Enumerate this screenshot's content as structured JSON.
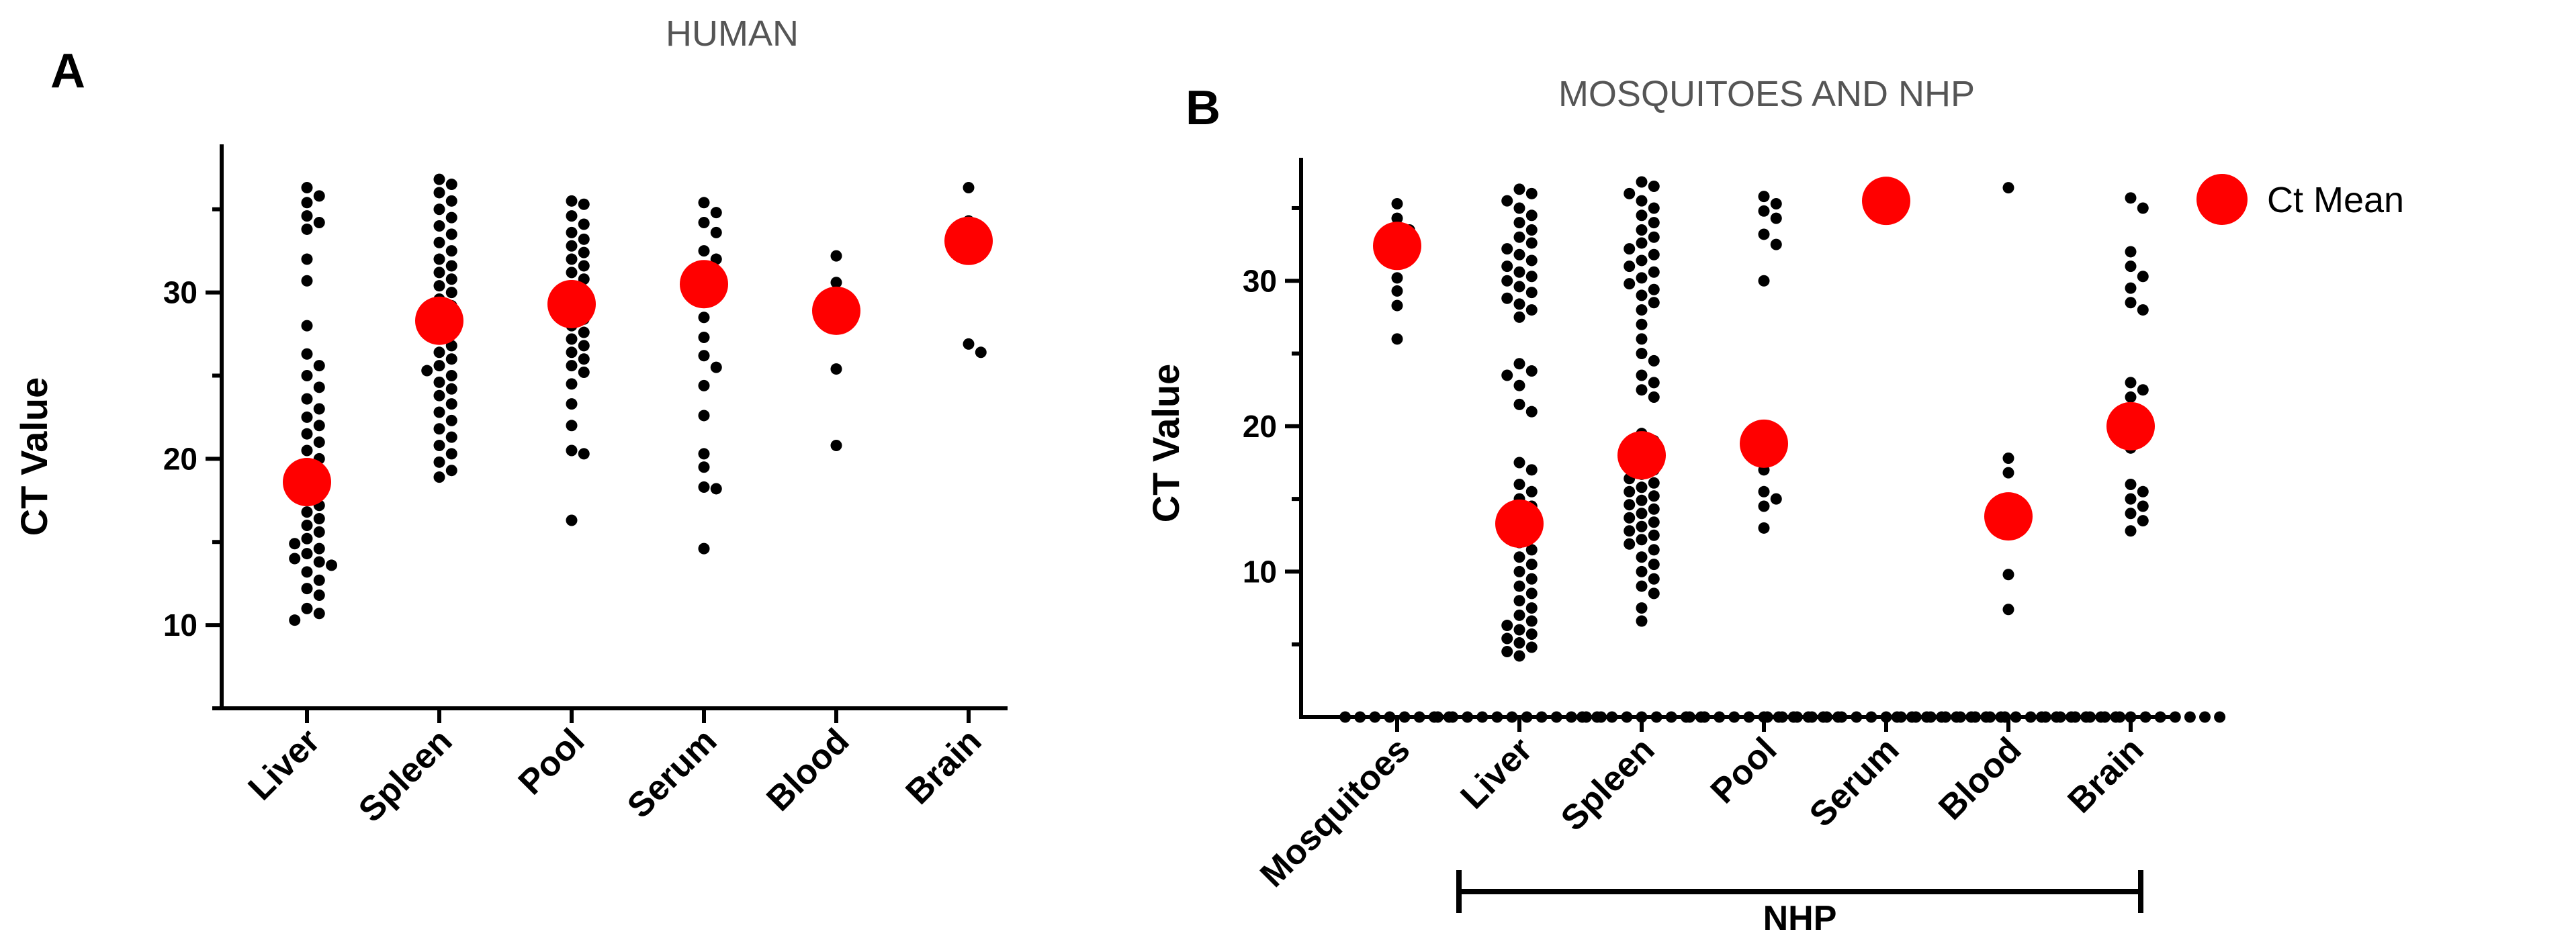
{
  "legend": {
    "label": "Ct Mean",
    "color": "#ff0000"
  },
  "chart_data": [
    {
      "type": "scatter",
      "panel": "A",
      "title": "HUMAN",
      "ylabel": "CT Value",
      "xlabel": "",
      "ylim": [
        5,
        38.5
      ],
      "yticks": [
        10,
        20,
        30
      ],
      "grid": false,
      "categories": [
        "Liver",
        "Spleen",
        "Pool",
        "Serum",
        "Blood",
        "Brain"
      ],
      "series": [
        {
          "category": "Liver",
          "mean": 18.6,
          "values": [
            36.3,
            35.8,
            35.4,
            34.6,
            34.2,
            33.8,
            32.0,
            30.7,
            28.0,
            26.3,
            25.6,
            25.0,
            24.3,
            23.6,
            23.0,
            22.5,
            22.0,
            21.5,
            21.0,
            20.5,
            20.0,
            19.5,
            19.0,
            18.5,
            18.0,
            17.6,
            17.2,
            16.8,
            16.4,
            16.0,
            15.6,
            15.2,
            14.9,
            14.6,
            14.3,
            14.0,
            13.8,
            13.6,
            13.2,
            12.7,
            12.2,
            11.8,
            11.0,
            10.7,
            10.3
          ]
        },
        {
          "category": "Spleen",
          "mean": 28.3,
          "values": [
            36.8,
            36.5,
            36.0,
            35.5,
            35.0,
            34.5,
            34.0,
            33.5,
            33.0,
            32.5,
            32.0,
            31.6,
            31.2,
            30.8,
            30.4,
            30.0,
            29.6,
            29.2,
            28.8,
            28.4,
            28.0,
            27.6,
            27.2,
            26.8,
            26.4,
            26.0,
            25.6,
            25.3,
            25.0,
            24.6,
            24.2,
            23.8,
            23.3,
            22.8,
            22.3,
            21.8,
            21.3,
            20.8,
            20.3,
            19.8,
            19.3,
            18.9
          ]
        },
        {
          "category": "Pool",
          "mean": 29.3,
          "values": [
            35.5,
            35.3,
            34.6,
            34.1,
            33.6,
            33.2,
            32.8,
            32.4,
            32.0,
            31.6,
            31.2,
            30.8,
            30.4,
            30.0,
            29.6,
            29.2,
            28.8,
            28.4,
            28.0,
            27.6,
            27.2,
            26.8,
            26.4,
            26.0,
            25.6,
            25.2,
            24.5,
            23.3,
            22.0,
            20.5,
            20.3,
            16.3
          ]
        },
        {
          "category": "Serum",
          "mean": 30.5,
          "values": [
            35.4,
            34.8,
            34.2,
            33.6,
            32.5,
            32.0,
            31.5,
            31.0,
            30.0,
            28.5,
            27.3,
            26.2,
            25.5,
            24.4,
            22.6,
            20.3,
            19.5,
            18.3,
            18.2,
            14.6
          ]
        },
        {
          "category": "Blood",
          "mean": 28.9,
          "values": [
            32.2,
            30.6,
            28.4,
            28.1,
            25.4,
            20.8
          ]
        },
        {
          "category": "Brain",
          "mean": 33.1,
          "values": [
            36.3,
            34.3,
            33.0,
            26.9,
            26.4
          ]
        }
      ]
    },
    {
      "type": "scatter",
      "panel": "B",
      "title": "MOSQUITOES AND NHP",
      "ylabel": "CT Value",
      "xlabel": "",
      "ylim": [
        0,
        38
      ],
      "yticks": [
        10,
        20,
        30
      ],
      "grid": false,
      "categories": [
        "Mosquitoes",
        "Liver",
        "Spleen",
        "Pool",
        "Serum",
        "Blood",
        "Brain"
      ],
      "group_bracket": {
        "label": "NHP",
        "categories": [
          "Liver",
          "Spleen",
          "Pool",
          "Serum",
          "Blood",
          "Brain"
        ]
      },
      "series": [
        {
          "category": "Mosquitoes",
          "mean": 32.4,
          "values": [
            35.3,
            34.3,
            33.5,
            32.7,
            31.8,
            30.2,
            29.3,
            28.3,
            26.0,
            0,
            0,
            0,
            0,
            0,
            0,
            0,
            0
          ]
        },
        {
          "category": "Liver",
          "mean": 13.3,
          "values": [
            36.3,
            36.0,
            35.5,
            35.0,
            34.5,
            34.0,
            33.5,
            33.0,
            32.6,
            32.2,
            31.8,
            31.4,
            31.0,
            30.6,
            30.3,
            30.0,
            29.6,
            29.2,
            28.8,
            28.4,
            28.0,
            27.5,
            24.3,
            23.8,
            23.5,
            22.8,
            21.5,
            21.0,
            17.5,
            17.0,
            16.0,
            15.5,
            15.0,
            14.5,
            14.0,
            13.5,
            13.0,
            12.5,
            12.0,
            11.5,
            11.0,
            10.5,
            10.0,
            9.5,
            9.0,
            8.5,
            8.0,
            7.5,
            7.0,
            6.6,
            6.3,
            6.0,
            5.7,
            5.4,
            5.1,
            4.8,
            4.5,
            4.2,
            0,
            0,
            0,
            0,
            0,
            0,
            0,
            0,
            0,
            0,
            0,
            0
          ]
        },
        {
          "category": "Spleen",
          "mean": 18.0,
          "values": [
            36.8,
            36.5,
            36.0,
            35.5,
            35.0,
            34.5,
            34.0,
            33.5,
            33.0,
            32.6,
            32.2,
            31.8,
            31.4,
            31.0,
            30.6,
            30.2,
            29.8,
            29.4,
            29.0,
            28.5,
            28.0,
            27.0,
            26.0,
            25.0,
            24.5,
            23.5,
            23.0,
            22.5,
            22.0,
            19.5,
            19.0,
            18.5,
            18.2,
            17.9,
            17.6,
            17.3,
            17.0,
            16.7,
            16.4,
            16.1,
            15.8,
            15.5,
            15.2,
            14.9,
            14.6,
            14.3,
            14.0,
            13.7,
            13.4,
            13.1,
            12.8,
            12.5,
            12.2,
            11.9,
            11.5,
            11.0,
            10.5,
            10.0,
            9.5,
            9.0,
            8.5,
            7.5,
            6.6,
            0,
            0,
            0,
            0,
            0,
            0,
            0,
            0,
            0
          ]
        },
        {
          "category": "Pool",
          "mean": 18.8,
          "values": [
            35.8,
            35.3,
            34.8,
            34.3,
            33.2,
            32.5,
            30.0,
            18.0,
            17.0,
            15.5,
            15.0,
            14.5,
            13.0,
            0,
            0,
            0,
            0,
            0,
            0,
            0,
            0,
            0,
            0,
            0
          ]
        },
        {
          "category": "Serum",
          "mean": 35.5,
          "values": [
            36.4,
            36.0,
            35.0,
            34.6,
            0,
            0,
            0,
            0,
            0,
            0,
            0,
            0,
            0,
            0,
            0,
            0,
            0,
            0,
            0,
            0,
            0
          ]
        },
        {
          "category": "Blood",
          "mean": 13.8,
          "values": [
            36.4,
            17.8,
            16.8,
            9.8,
            7.4,
            0,
            0,
            0,
            0,
            0,
            0,
            0,
            0,
            0,
            0,
            0,
            0,
            0,
            0,
            0,
            0
          ]
        },
        {
          "category": "Brain",
          "mean": 20.0,
          "values": [
            35.7,
            35.0,
            32.0,
            31.0,
            30.3,
            29.5,
            28.5,
            28.0,
            23.0,
            22.5,
            22.0,
            18.5,
            16.0,
            15.5,
            15.0,
            14.5,
            14.0,
            13.5,
            12.8,
            0,
            0,
            0,
            0,
            0,
            0,
            0,
            0,
            0,
            0,
            0,
            0,
            0
          ]
        }
      ]
    }
  ]
}
